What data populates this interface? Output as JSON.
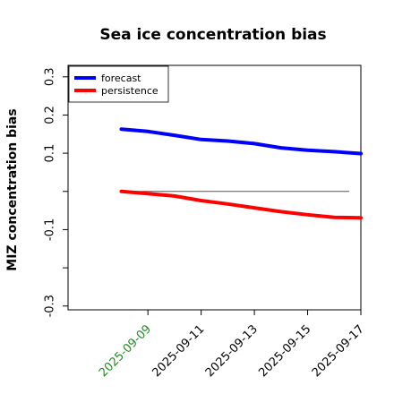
{
  "chart_data": {
    "type": "line",
    "title": "Sea ice concentration bias",
    "ylabel": "MIZ concentration bias",
    "xlabel": "",
    "x": [
      "2025-09-08",
      "2025-09-09",
      "2025-09-10",
      "2025-09-11",
      "2025-09-12",
      "2025-09-13",
      "2025-09-14",
      "2025-09-15",
      "2025-09-16",
      "2025-09-17"
    ],
    "xticks": [
      "2025-09-09",
      "2025-09-11",
      "2025-09-13",
      "2025-09-15",
      "2025-09-17"
    ],
    "highlight_tick": "2025-09-09",
    "highlight_color": "#228b22",
    "xlim": [
      "2025-09-06",
      "2025-09-17"
    ],
    "ylim": [
      -0.31,
      0.33
    ],
    "yticks": [
      -0.3,
      -0.2,
      -0.1,
      0.0,
      0.1,
      0.2,
      0.3
    ],
    "ytick_labels": [
      "-0.3",
      "",
      "-0.1",
      "",
      "0.1",
      "0.2",
      "0.3"
    ],
    "zero_line": true,
    "grid": false,
    "legend_position": "top-left",
    "series": [
      {
        "name": "forecast",
        "color": "#0000ff",
        "values": [
          0.163,
          0.157,
          0.147,
          0.136,
          0.132,
          0.125,
          0.114,
          0.108,
          0.104,
          0.099
        ]
      },
      {
        "name": "persistence",
        "color": "#ff0000",
        "values": [
          0.0,
          -0.006,
          -0.012,
          -0.024,
          -0.033,
          -0.043,
          -0.053,
          -0.061,
          -0.068,
          -0.069
        ]
      }
    ]
  }
}
